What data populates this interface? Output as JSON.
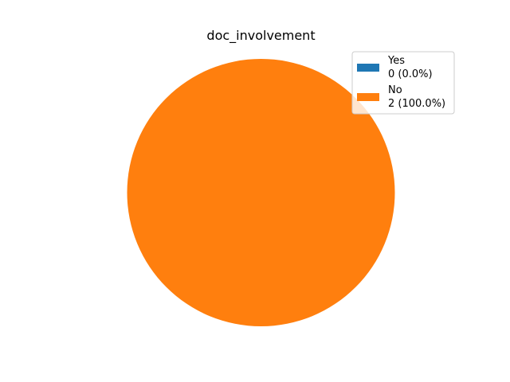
{
  "chart_data": {
    "type": "pie",
    "title": "doc_involvement",
    "slices": [
      {
        "label": "Yes",
        "value": 0,
        "percent": 0.0,
        "legend_value": "0 (0.0%)",
        "color": "#1f77b4"
      },
      {
        "label": "No",
        "value": 2,
        "percent": 100.0,
        "legend_value": "2 (100.0%)",
        "color": "#ff7f0e"
      }
    ],
    "legend_placement": "top-right"
  }
}
